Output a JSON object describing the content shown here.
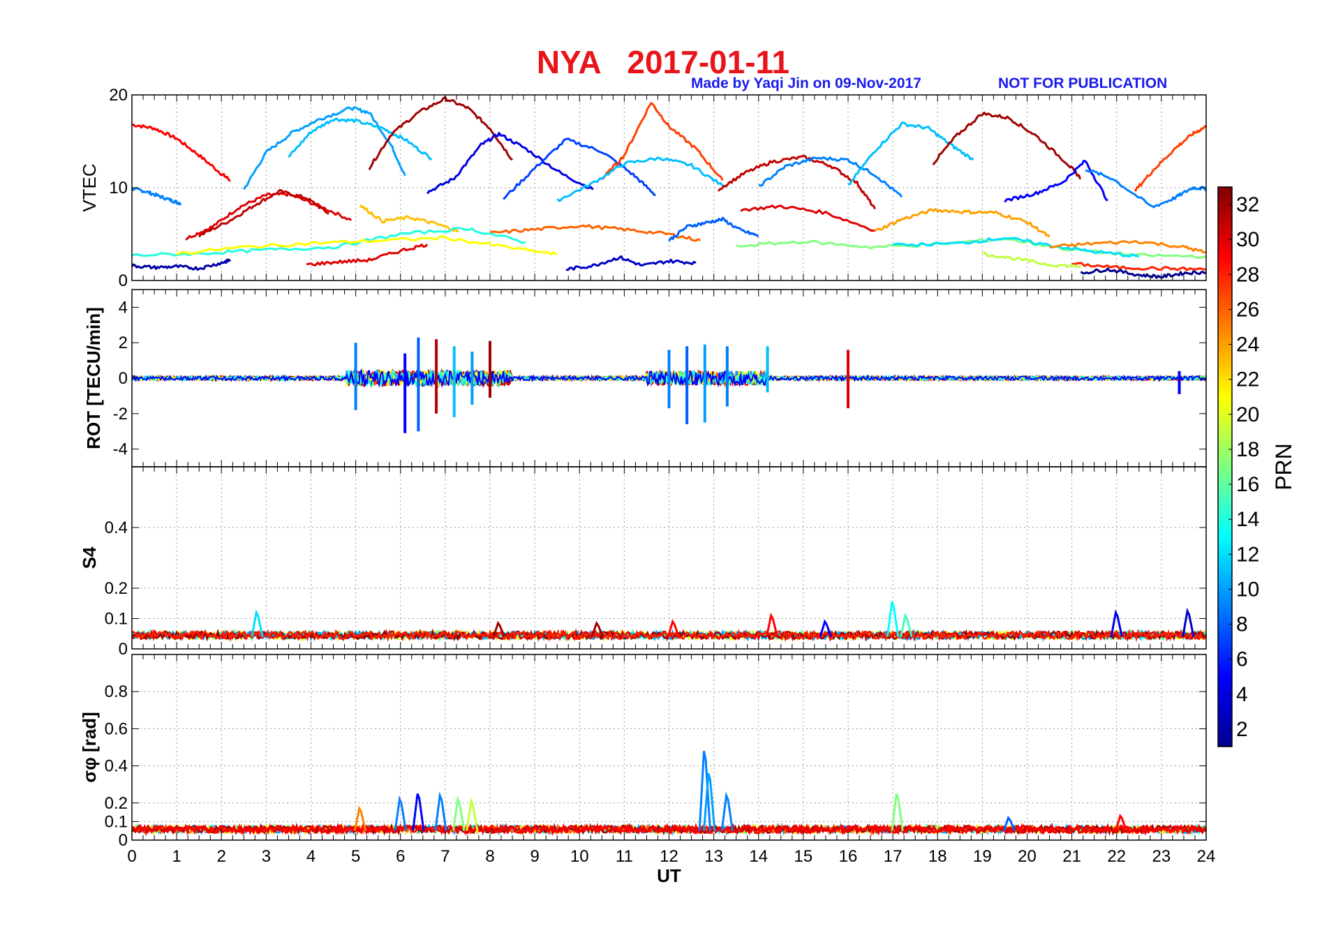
{
  "header": {
    "title": "NYA   2017-01-11",
    "credit": "Made by Yaqi Jin on 09-Nov-2017",
    "notice": "NOT FOR PUBLICATION"
  },
  "colors": {
    "title": "#e8141a",
    "credit": "#1a1aee",
    "grid": "#9a9a9a"
  },
  "chart_data": [
    {
      "type": "line",
      "panel": "vtec",
      "ylabel": "VTEC",
      "ylim": [
        0,
        20
      ],
      "yticks": [
        0,
        10,
        20
      ],
      "xlim": [
        0,
        24
      ],
      "grid": true,
      "series": [
        {
          "prn": 29,
          "x": [
            0,
            0.5,
            1,
            1.5,
            2,
            2.2
          ],
          "values": [
            16.8,
            16.4,
            15.3,
            13.5,
            11.5,
            10.8
          ]
        },
        {
          "prn": 9,
          "x": [
            0,
            0.3,
            0.6,
            0.9,
            1.1
          ],
          "values": [
            9.9,
            9.6,
            9.1,
            8.6,
            8.3
          ]
        },
        {
          "prn": 30,
          "x": [
            1.2,
            1.8,
            2.4,
            3,
            3.5,
            4.2,
            4.9
          ],
          "values": [
            4.5,
            5.8,
            7.9,
            9.2,
            9.3,
            8.0,
            6.5
          ]
        },
        {
          "prn": 31,
          "x": [
            1.5,
            2.2,
            2.8,
            3.3,
            3.9,
            4.4
          ],
          "values": [
            4.8,
            6.5,
            8.3,
            9.6,
            8.9,
            7.2
          ]
        },
        {
          "prn": 10,
          "x": [
            2.5,
            3.0,
            3.6,
            4.2,
            4.9,
            5.3,
            5.8,
            6.1
          ],
          "values": [
            9.8,
            13.8,
            16.0,
            17.4,
            18.6,
            18.1,
            14.5,
            11.3
          ]
        },
        {
          "prn": 11,
          "x": [
            3.5,
            4.0,
            4.5,
            5.0,
            5.6,
            6.1,
            6.7
          ],
          "values": [
            13.3,
            16.0,
            17.4,
            17.2,
            16.4,
            15.2,
            13.1
          ]
        },
        {
          "prn": 32,
          "x": [
            5.3,
            5.8,
            6.4,
            7.0,
            7.5,
            8.0,
            8.5
          ],
          "values": [
            12.1,
            15.8,
            18.1,
            19.6,
            18.6,
            16.4,
            13.0
          ]
        },
        {
          "prn": 4,
          "x": [
            6.6,
            7.2,
            7.8,
            8.2,
            8.8,
            9.6,
            10.3
          ],
          "values": [
            9.5,
            11.0,
            14.6,
            15.8,
            14.2,
            11.5,
            9.8
          ]
        },
        {
          "prn": 7,
          "x": [
            8.3,
            9.0,
            9.7,
            10.5,
            11.2,
            11.7
          ],
          "values": [
            8.8,
            12.1,
            15.2,
            13.9,
            11.4,
            9.2
          ]
        },
        {
          "prn": 27,
          "x": [
            10.5,
            11.0,
            11.6,
            12.0,
            12.6,
            13.2
          ],
          "values": [
            10.9,
            13.5,
            19.2,
            16.6,
            14.2,
            10.8
          ]
        },
        {
          "prn": 11,
          "x": [
            9.5,
            10.3,
            11.0,
            11.8,
            12.5,
            13.2
          ],
          "values": [
            8.6,
            10.5,
            12.6,
            13.2,
            12.4,
            10.2
          ]
        },
        {
          "prn": 31,
          "x": [
            13.1,
            13.7,
            14.3,
            15.0,
            15.6,
            16.2,
            16.6
          ],
          "values": [
            9.8,
            11.6,
            12.8,
            13.3,
            12.4,
            10.5,
            7.7
          ]
        },
        {
          "prn": 9,
          "x": [
            14.0,
            14.6,
            15.3,
            16.0,
            16.6,
            17.2
          ],
          "values": [
            10.1,
            12.3,
            13.2,
            13.0,
            11.4,
            9.0
          ]
        },
        {
          "prn": 11,
          "x": [
            16.0,
            16.6,
            17.2,
            17.8,
            18.3,
            18.8
          ],
          "values": [
            10.2,
            14.0,
            16.9,
            16.4,
            14.6,
            13.0
          ]
        },
        {
          "prn": 32,
          "x": [
            17.9,
            18.4,
            19.0,
            19.6,
            20.2,
            20.9,
            21.2
          ],
          "values": [
            12.6,
            15.5,
            18.0,
            17.5,
            15.6,
            12.6,
            11.0
          ]
        },
        {
          "prn": 5,
          "x": [
            19.5,
            20.2,
            20.8,
            21.3,
            21.8
          ],
          "values": [
            8.6,
            9.4,
            10.6,
            12.9,
            8.6
          ]
        },
        {
          "prn": 27,
          "x": [
            22.4,
            22.8,
            23.3,
            23.7,
            24.0
          ],
          "values": [
            9.6,
            11.8,
            14.2,
            15.8,
            16.6
          ]
        },
        {
          "prn": 9,
          "x": [
            21.3,
            21.9,
            22.8,
            23.3,
            23.7,
            24.0
          ],
          "values": [
            12.0,
            11.0,
            7.9,
            8.9,
            10.0,
            9.9
          ]
        },
        {
          "prn": 30,
          "x": [
            13.6,
            14.5,
            15.5,
            16.6
          ],
          "values": [
            7.6,
            8.0,
            7.3,
            5.4
          ]
        },
        {
          "prn": 23,
          "x": [
            5.1,
            5.6,
            6.2,
            6.8,
            7.3
          ],
          "values": [
            8.1,
            6.4,
            6.8,
            6.1,
            5.3
          ]
        },
        {
          "prn": 24,
          "x": [
            16.6,
            17.2,
            17.9,
            18.6,
            19.3,
            20.0,
            20.5
          ],
          "values": [
            5.3,
            6.6,
            7.6,
            7.4,
            7.3,
            6.3,
            4.7
          ]
        },
        {
          "prn": 26,
          "x": [
            8.0,
            9.0,
            10.0,
            11.0,
            12.0,
            12.7
          ],
          "values": [
            5.1,
            5.5,
            5.9,
            5.5,
            5.0,
            4.3
          ]
        },
        {
          "prn": 2,
          "x": [
            0,
            0.5,
            1.0,
            1.5,
            2.0,
            2.2
          ],
          "values": [
            1.6,
            1.4,
            1.5,
            1.3,
            1.9,
            2.2
          ]
        },
        {
          "prn": 3,
          "x": [
            9.7,
            10.3,
            10.9,
            11.4,
            12.0,
            12.6
          ],
          "values": [
            1.2,
            1.6,
            2.5,
            1.6,
            2.1,
            1.9
          ]
        },
        {
          "prn": 1,
          "x": [
            21.2,
            21.8,
            22.5,
            23.0,
            23.5,
            24.0
          ],
          "values": [
            0.8,
            1.2,
            0.6,
            0.4,
            0.8,
            0.9
          ]
        },
        {
          "prn": 8,
          "x": [
            12.0,
            12.4,
            12.8,
            13.2,
            13.6,
            14.0
          ],
          "values": [
            4.3,
            5.8,
            6.2,
            6.6,
            5.4,
            4.8
          ]
        },
        {
          "prn": 14,
          "x": [
            0,
            1.5,
            3.0,
            4.5,
            6.0,
            7.5,
            8.8
          ],
          "values": [
            2.7,
            2.9,
            3.3,
            3.6,
            5.0,
            5.6,
            4.1
          ]
        },
        {
          "prn": 21,
          "x": [
            1.0,
            2.5,
            4.0,
            5.5,
            7.0,
            8.5,
            9.5
          ],
          "values": [
            2.9,
            3.6,
            4.0,
            4.3,
            4.6,
            3.5,
            2.8
          ]
        },
        {
          "prn": 17,
          "x": [
            13.5,
            15.0,
            16.5,
            18.0,
            19.5,
            21.0,
            22.5,
            24.0
          ],
          "values": [
            3.7,
            4.2,
            3.6,
            3.9,
            4.5,
            3.3,
            2.7,
            2.6
          ]
        },
        {
          "prn": 12,
          "x": [
            17.0,
            18.5,
            19.5,
            20.5,
            21.5,
            22.5
          ],
          "values": [
            3.8,
            4.0,
            4.6,
            3.8,
            3.1,
            2.6
          ]
        },
        {
          "prn": 28,
          "x": [
            21.0,
            22.0,
            23.0,
            24.0
          ],
          "values": [
            1.8,
            1.4,
            1.3,
            1.2
          ]
        },
        {
          "prn": 25,
          "x": [
            20.5,
            21.5,
            22.5,
            23.5,
            24.0
          ],
          "values": [
            3.6,
            4.0,
            4.2,
            3.6,
            3.0
          ]
        },
        {
          "prn": 30,
          "x": [
            3.9,
            4.6,
            5.3,
            6.0,
            6.6
          ],
          "values": [
            1.7,
            2.0,
            2.2,
            3.2,
            3.9
          ]
        },
        {
          "prn": 19,
          "x": [
            19.0,
            19.8,
            20.5,
            21.2
          ],
          "values": [
            2.9,
            2.3,
            1.7,
            1.5
          ]
        }
      ]
    },
    {
      "type": "line",
      "panel": "rot",
      "ylabel": "ROT [TECU/min]",
      "ylim": [
        -5,
        5
      ],
      "yticks": [
        -4,
        -2,
        0,
        2,
        4
      ],
      "xlim": [
        0,
        24
      ],
      "grid": false,
      "note": "noise around zero; spikes near 5-8 UT and 11.5-14 UT",
      "spikes": [
        {
          "x": 5.0,
          "values": [
            2.0,
            -1.8
          ]
        },
        {
          "x": 6.1,
          "values": [
            1.4,
            -3.1
          ]
        },
        {
          "x": 6.4,
          "values": [
            2.3,
            -3.0
          ]
        },
        {
          "x": 6.8,
          "values": [
            2.2,
            -2.0
          ]
        },
        {
          "x": 7.2,
          "values": [
            1.8,
            -2.2
          ]
        },
        {
          "x": 7.6,
          "values": [
            1.5,
            -1.5
          ]
        },
        {
          "x": 8.0,
          "values": [
            2.1,
            -1.1
          ]
        },
        {
          "x": 12.0,
          "values": [
            1.6,
            -1.7
          ]
        },
        {
          "x": 12.4,
          "values": [
            1.8,
            -2.6
          ]
        },
        {
          "x": 12.8,
          "values": [
            1.9,
            -2.5
          ]
        },
        {
          "x": 13.3,
          "values": [
            1.8,
            -1.6
          ]
        },
        {
          "x": 14.2,
          "values": [
            1.8,
            -0.8
          ]
        },
        {
          "x": 16.0,
          "values": [
            1.6,
            -1.7
          ]
        },
        {
          "x": 23.4,
          "values": [
            0.4,
            -0.9
          ]
        }
      ]
    },
    {
      "type": "line",
      "panel": "s4",
      "ylabel": "S4",
      "ylim": [
        0,
        0.6
      ],
      "yticks": [
        0,
        0.1,
        0.2,
        0.4
      ],
      "xlim": [
        0,
        24
      ],
      "grid": true,
      "baseline": 0.04,
      "spikes": [
        {
          "x": 2.8,
          "value": 0.12,
          "prn": 12
        },
        {
          "x": 8.2,
          "value": 0.085,
          "prn": 32
        },
        {
          "x": 10.4,
          "value": 0.085,
          "prn": 32
        },
        {
          "x": 12.1,
          "value": 0.09,
          "prn": 29
        },
        {
          "x": 14.3,
          "value": 0.11,
          "prn": 29
        },
        {
          "x": 15.5,
          "value": 0.09,
          "prn": 5
        },
        {
          "x": 17.0,
          "value": 0.155,
          "prn": 13
        },
        {
          "x": 17.3,
          "value": 0.11,
          "prn": 15
        },
        {
          "x": 22.0,
          "value": 0.12,
          "prn": 4
        },
        {
          "x": 23.6,
          "value": 0.125,
          "prn": 3
        }
      ]
    },
    {
      "type": "line",
      "panel": "sigma_phi",
      "ylabel": "σφ [rad]",
      "ylim": [
        0,
        1
      ],
      "yticks": [
        0,
        0.1,
        0.2,
        0.4,
        0.6,
        0.8
      ],
      "xlim": [
        0,
        24
      ],
      "xticks": [
        0,
        1,
        2,
        3,
        4,
        5,
        6,
        7,
        8,
        9,
        10,
        11,
        12,
        13,
        14,
        15,
        16,
        17,
        18,
        19,
        20,
        21,
        22,
        23,
        24
      ],
      "xlabel": "UT",
      "grid": true,
      "baseline": 0.05,
      "spikes": [
        {
          "x": 5.1,
          "value": 0.17,
          "prn": 25
        },
        {
          "x": 6.0,
          "value": 0.22,
          "prn": 9
        },
        {
          "x": 6.4,
          "value": 0.25,
          "prn": 5
        },
        {
          "x": 6.9,
          "value": 0.24,
          "prn": 9
        },
        {
          "x": 7.3,
          "value": 0.22,
          "prn": 17
        },
        {
          "x": 7.6,
          "value": 0.21,
          "prn": 19
        },
        {
          "x": 12.8,
          "value": 0.48,
          "prn": 9
        },
        {
          "x": 12.9,
          "value": 0.36,
          "prn": 10
        },
        {
          "x": 13.3,
          "value": 0.24,
          "prn": 9
        },
        {
          "x": 17.1,
          "value": 0.25,
          "prn": 17
        },
        {
          "x": 19.6,
          "value": 0.12,
          "prn": 8
        },
        {
          "x": 22.1,
          "value": 0.13,
          "prn": 29
        }
      ]
    }
  ],
  "colorbar": {
    "label": "PRN",
    "range": [
      1,
      33
    ],
    "ticks": [
      2,
      4,
      6,
      8,
      10,
      12,
      14,
      16,
      18,
      20,
      22,
      24,
      26,
      28,
      30,
      32
    ]
  }
}
